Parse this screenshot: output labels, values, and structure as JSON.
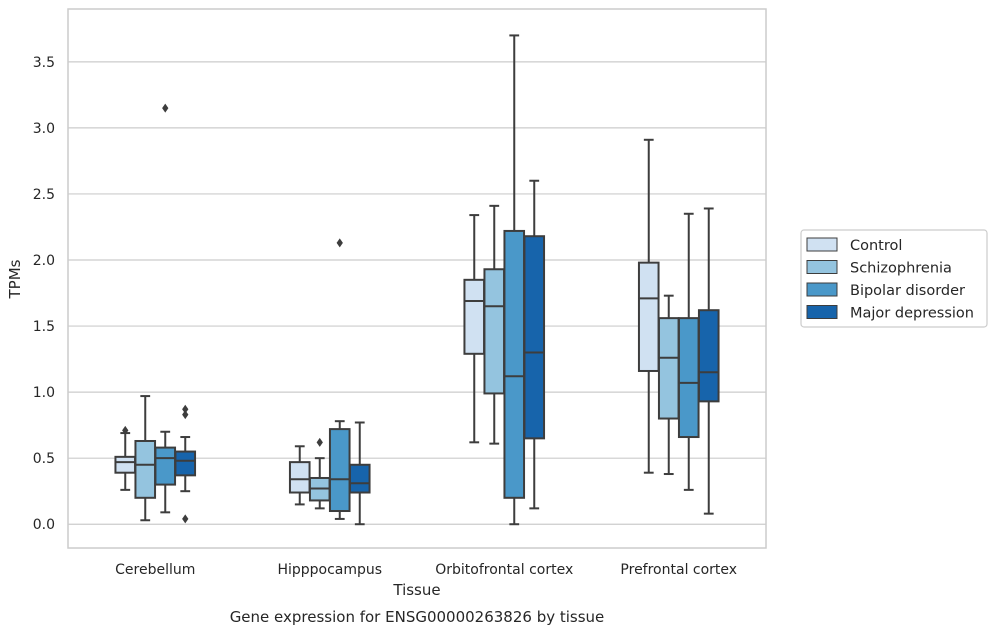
{
  "chart_data": {
    "type": "box",
    "title": "",
    "caption": "Gene expression for ENSG00000263826 by tissue",
    "xlabel": "Tissue",
    "ylabel": "TPMs",
    "ylim": [
      -0.18,
      3.9
    ],
    "yticks": [
      "0.0",
      "0.5",
      "1.0",
      "1.5",
      "2.0",
      "2.5",
      "3.0",
      "3.5"
    ],
    "grid": "horizontal",
    "legend_position": "right",
    "categories": [
      "Cerebellum",
      "Hipppocampus",
      "Orbitofrontal cortex",
      "Prefrontal cortex"
    ],
    "series": [
      {
        "name": "Control",
        "color": "#d0e1f2",
        "boxes": [
          {
            "whislo": 0.26,
            "q1": 0.39,
            "med": 0.47,
            "q3": 0.51,
            "whishi": 0.69,
            "fliers": [
              0.71
            ]
          },
          {
            "whislo": 0.15,
            "q1": 0.24,
            "med": 0.34,
            "q3": 0.47,
            "whishi": 0.59,
            "fliers": []
          },
          {
            "whislo": 0.62,
            "q1": 1.29,
            "med": 1.69,
            "q3": 1.85,
            "whishi": 2.34,
            "fliers": []
          },
          {
            "whislo": 0.39,
            "q1": 1.16,
            "med": 1.71,
            "q3": 1.98,
            "whishi": 2.91,
            "fliers": []
          }
        ]
      },
      {
        "name": "Schizophrenia",
        "color": "#94c4df",
        "boxes": [
          {
            "whislo": 0.03,
            "q1": 0.2,
            "med": 0.45,
            "q3": 0.63,
            "whishi": 0.97,
            "fliers": []
          },
          {
            "whislo": 0.12,
            "q1": 0.18,
            "med": 0.27,
            "q3": 0.35,
            "whishi": 0.5,
            "fliers": [
              0.62
            ]
          },
          {
            "whislo": 0.61,
            "q1": 0.99,
            "med": 1.65,
            "q3": 1.93,
            "whishi": 2.41,
            "fliers": []
          },
          {
            "whislo": 0.38,
            "q1": 0.8,
            "med": 1.26,
            "q3": 1.56,
            "whishi": 1.73,
            "fliers": []
          }
        ]
      },
      {
        "name": "Bipolar disorder",
        "color": "#4a98c9",
        "boxes": [
          {
            "whislo": 0.09,
            "q1": 0.3,
            "med": 0.5,
            "q3": 0.58,
            "whishi": 0.7,
            "fliers": [
              3.15
            ]
          },
          {
            "whislo": 0.04,
            "q1": 0.1,
            "med": 0.34,
            "q3": 0.72,
            "whishi": 0.78,
            "fliers": [
              2.13
            ]
          },
          {
            "whislo": 0.0,
            "q1": 0.2,
            "med": 1.12,
            "q3": 2.22,
            "whishi": 3.7,
            "fliers": []
          },
          {
            "whislo": 0.26,
            "q1": 0.66,
            "med": 1.07,
            "q3": 1.56,
            "whishi": 2.35,
            "fliers": []
          }
        ]
      },
      {
        "name": "Major depression",
        "color": "#1764ab",
        "boxes": [
          {
            "whislo": 0.25,
            "q1": 0.37,
            "med": 0.48,
            "q3": 0.55,
            "whishi": 0.66,
            "fliers": [
              0.04,
              0.83,
              0.87
            ]
          },
          {
            "whislo": 0.0,
            "q1": 0.24,
            "med": 0.31,
            "q3": 0.45,
            "whishi": 0.77,
            "fliers": []
          },
          {
            "whislo": 0.12,
            "q1": 0.65,
            "med": 1.3,
            "q3": 2.18,
            "whishi": 2.6,
            "fliers": []
          },
          {
            "whislo": 0.08,
            "q1": 0.93,
            "med": 1.15,
            "q3": 1.62,
            "whishi": 2.39,
            "fliers": []
          }
        ]
      }
    ]
  }
}
